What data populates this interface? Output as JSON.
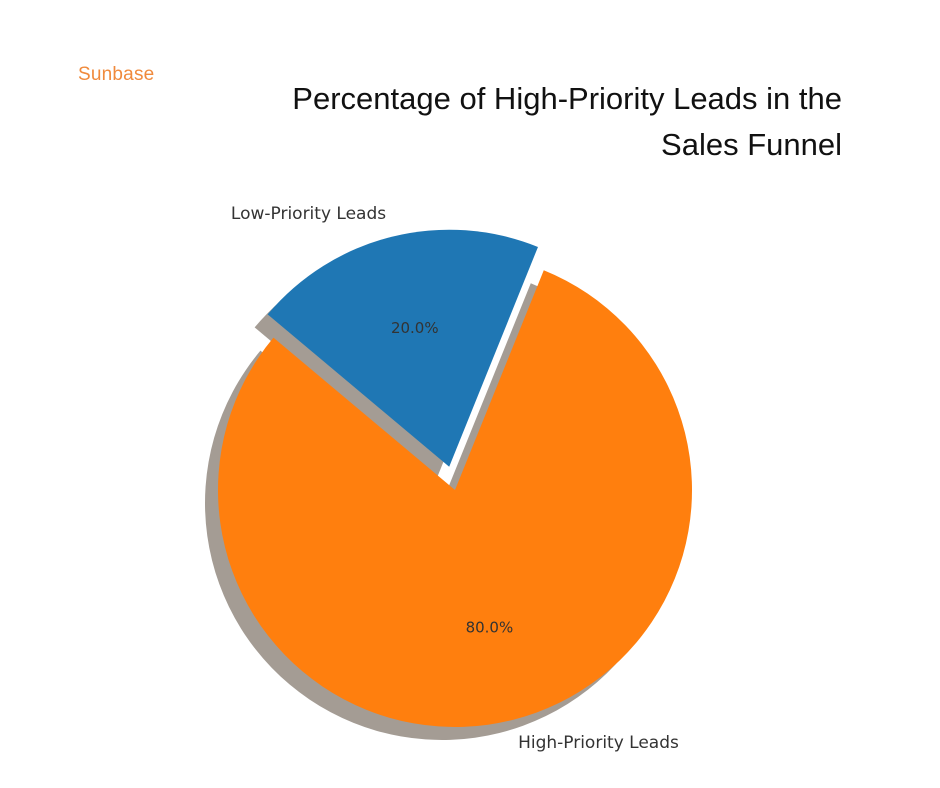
{
  "logo": "Sunbase",
  "chart_data": {
    "type": "pie",
    "title": "Percentage of High-Priority Leads in the Sales Funnel",
    "categories": [
      "Low-Priority Leads",
      "High-Priority Leads"
    ],
    "values": [
      20,
      80
    ],
    "value_labels": [
      "20.0%",
      "80.0%"
    ],
    "colors": [
      "#1f77b4",
      "#ff7f0e"
    ],
    "explode": [
      true,
      false
    ],
    "shadow": true
  }
}
